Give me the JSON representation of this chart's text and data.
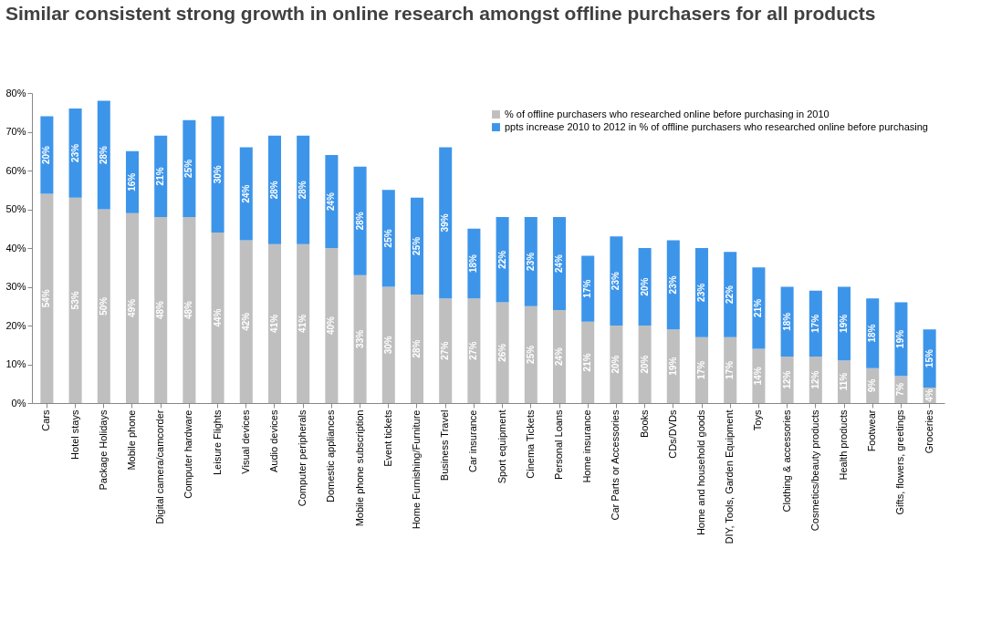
{
  "chart_data": {
    "type": "bar",
    "stacked": true,
    "title": "Similar consistent strong growth in online research amongst offline purchasers for all products",
    "categories": [
      "Cars",
      "Hotel stays",
      "Package Holidays",
      "Mobile phone",
      "Digital camera/camcorder",
      "Computer hardware",
      "Leisure Flights",
      "Visual devices",
      "Audio devices",
      "Computer peripherals",
      "Domestic appliances",
      "Mobile phone subscription",
      "Event tickets",
      "Home Furnishing/Furniture",
      "Business Travel",
      "Car insurance",
      "Sport equipment",
      "Cinema Tickets",
      "Personal Loans",
      "Home insurance",
      "Car Parts or Accessories",
      "Books",
      "CDs/DVDs",
      "Home and household goods",
      "DIY, Tools, Garden Equipment",
      "Toys",
      "Clothing & accessories",
      "Cosmetics/beauty products",
      "Health products",
      "Footwear",
      "Gifts, flowers, greetings",
      "Groceries"
    ],
    "series": [
      {
        "name": "% of offline purchasers who researched online before purchasing in 2010",
        "color": "#bfbfbf",
        "values": [
          54,
          53,
          50,
          49,
          48,
          48,
          44,
          42,
          41,
          41,
          40,
          33,
          30,
          28,
          27,
          27,
          26,
          25,
          24,
          21,
          20,
          20,
          19,
          17,
          17,
          14,
          12,
          12,
          11,
          9,
          7,
          4
        ],
        "value_labels": [
          "54%",
          "53%",
          "50%",
          "49%",
          "48%",
          "48%",
          "44%",
          "42%",
          "41%",
          "41%",
          "40%",
          "33%",
          "30%",
          "28%",
          "27%",
          "27%",
          "26%",
          "25%",
          "24%",
          "21%",
          "20%",
          "20%",
          "19%",
          "17%",
          "17%",
          "14%",
          "12%",
          "12%",
          "11%",
          "9%",
          "7%",
          "4%"
        ]
      },
      {
        "name": "ppts increase 2010 to 2012 in % of offline purchasers who researched online before purchasing",
        "color": "#3d95ea",
        "values": [
          20,
          23,
          28,
          16,
          21,
          25,
          30,
          24,
          28,
          28,
          24,
          28,
          25,
          25,
          39,
          18,
          22,
          23,
          24,
          17,
          23,
          20,
          23,
          23,
          22,
          21,
          18,
          17,
          19,
          18,
          19,
          15
        ],
        "value_labels": [
          "20%",
          "23%",
          "28%",
          "16%",
          "21%",
          "25%",
          "30%",
          "24%",
          "28%",
          "28%",
          "24%",
          "28%",
          "25%",
          "25%",
          "39%",
          "18%",
          "22%",
          "23%",
          "24%",
          "17%",
          "23%",
          "20%",
          "23%",
          "23%",
          "22%",
          "21%",
          "18%",
          "17%",
          "19%",
          "18%",
          "19%",
          "15%"
        ]
      }
    ],
    "ylim": [
      0,
      80
    ],
    "yticks": [
      {
        "value": 0,
        "label": "0%"
      },
      {
        "value": 10,
        "label": "10%"
      },
      {
        "value": 20,
        "label": "20%"
      },
      {
        "value": 30,
        "label": "30%"
      },
      {
        "value": 40,
        "label": "40%"
      },
      {
        "value": 50,
        "label": "50%"
      },
      {
        "value": 60,
        "label": "60%"
      },
      {
        "value": 70,
        "label": "70%"
      },
      {
        "value": 80,
        "label": "80%"
      }
    ],
    "grid": false,
    "legend": "top right"
  }
}
